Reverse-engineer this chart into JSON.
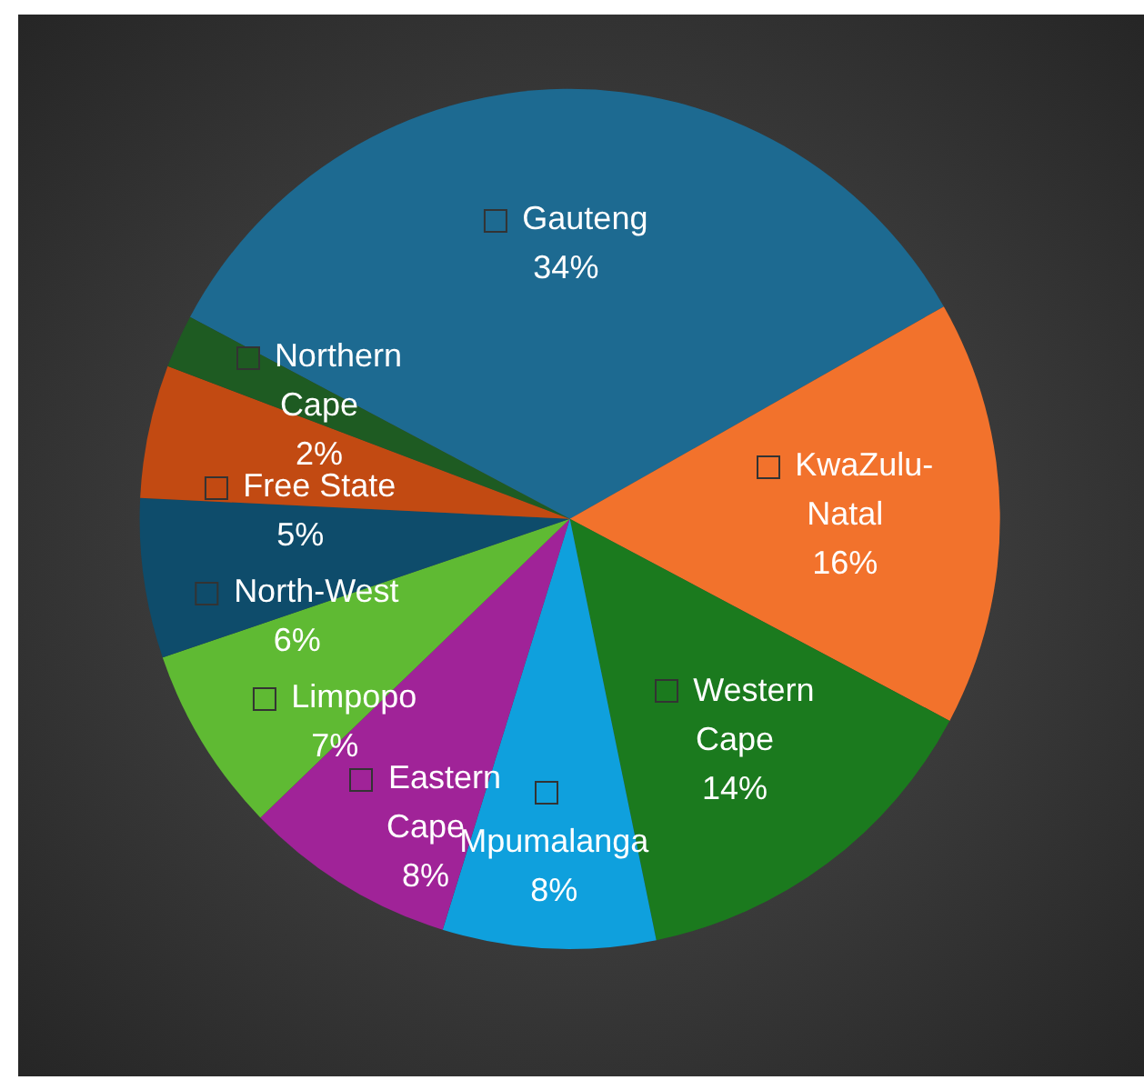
{
  "chart_data": {
    "type": "pie",
    "categories": [
      "Gauteng",
      "KwaZulu-Natal",
      "Western Cape",
      "Mpumalanga",
      "Eastern Cape",
      "Limpopo",
      "North-West",
      "Free State",
      "Northern Cape"
    ],
    "values": [
      34,
      16,
      14,
      8,
      8,
      7,
      6,
      5,
      2
    ],
    "colors": [
      "#1d6a91",
      "#f2722c",
      "#1b7a1e",
      "#0fa0dd",
      "#a02398",
      "#5fba33",
      "#0e4c6b",
      "#c24a12",
      "#1e5b22"
    ],
    "value_labels": [
      "34%",
      "16%",
      "14%",
      "8%",
      "8%",
      "7%",
      "6%",
      "5%",
      "2%"
    ],
    "legend": "left"
  }
}
